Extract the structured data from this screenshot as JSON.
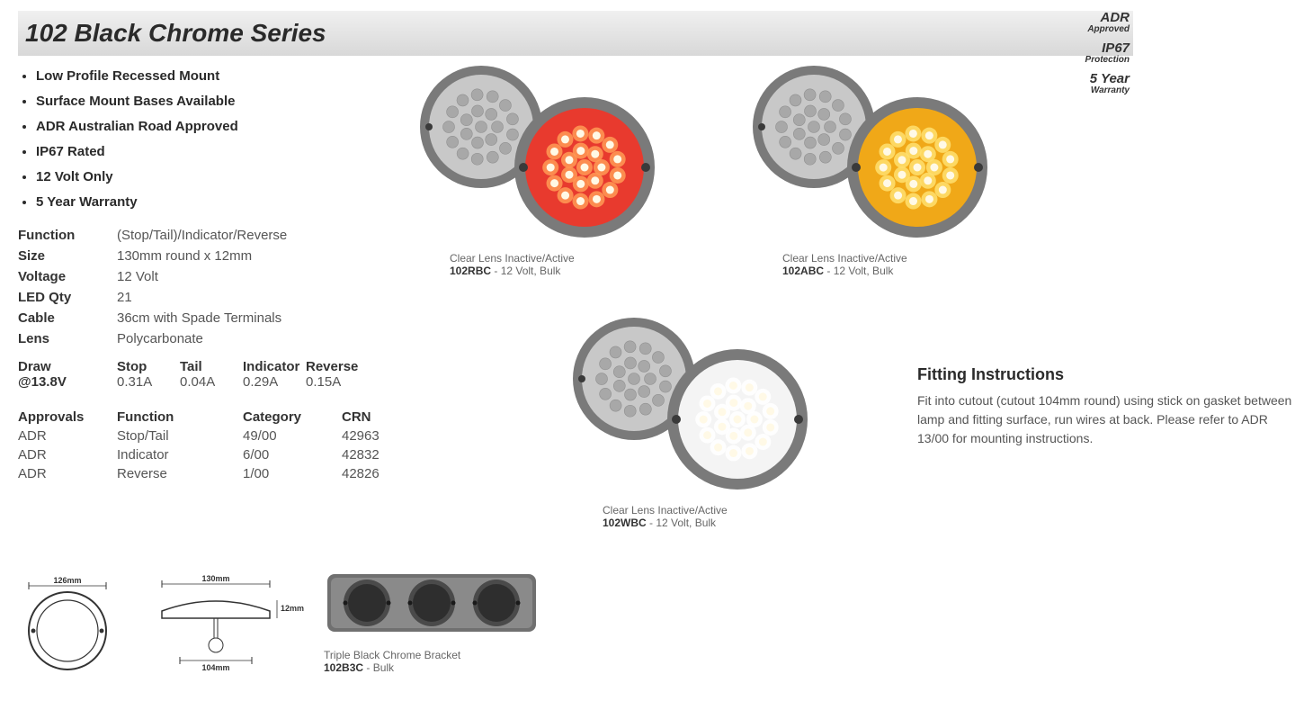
{
  "title": "102 Black Chrome Series",
  "certifications": [
    {
      "big": "ADR",
      "small": "Approved"
    },
    {
      "big": "IP67",
      "small": "Protection"
    },
    {
      "big": "5 Year",
      "small": "Warranty"
    }
  ],
  "bullets": [
    "Low Profile Recessed Mount",
    "Surface Mount Bases Available",
    "ADR Australian Road Approved",
    "IP67 Rated",
    "12 Volt Only",
    "5 Year Warranty"
  ],
  "specs": [
    {
      "label": "Function",
      "value": "(Stop/Tail)/Indicator/Reverse"
    },
    {
      "label": "Size",
      "value": "130mm round x 12mm"
    },
    {
      "label": "Voltage",
      "value": "12 Volt"
    },
    {
      "label": "LED Qty",
      "value": "21"
    },
    {
      "label": "Cable",
      "value": "36cm with Spade Terminals"
    },
    {
      "label": "Lens",
      "value": "Polycarbonate"
    }
  ],
  "draw": {
    "row_label": "Draw",
    "row_at": "@13.8V",
    "cols": [
      "Stop",
      "Tail",
      "Indicator",
      "Reverse"
    ],
    "vals": [
      "0.31A",
      "0.04A",
      "0.29A",
      "0.15A"
    ]
  },
  "approvals": {
    "headers": [
      "Approvals",
      "Function",
      "Category",
      "CRN"
    ],
    "rows": [
      [
        "ADR",
        "Stop/Tail",
        "49/00",
        "42963"
      ],
      [
        "ADR",
        "Indicator",
        "6/00",
        "42832"
      ],
      [
        "ADR",
        "Reverse",
        "1/00",
        "42826"
      ]
    ]
  },
  "lights": [
    {
      "model": "102RBC",
      "desc": " - 12 Volt, Bulk",
      "note": "Clear Lens Inactive/Active",
      "active_color": "#e83a2e",
      "glow": "#ff9b55"
    },
    {
      "model": "102ABC",
      "desc": " - 12 Volt, Bulk",
      "note": "Clear Lens Inactive/Active",
      "active_color": "#f0a818",
      "glow": "#ffe070"
    },
    {
      "model": "102WBC",
      "desc": " - 12 Volt, Bulk",
      "note": "Clear Lens Inactive/Active",
      "active_color": "#f4f4f4",
      "glow": "#ffffff"
    }
  ],
  "bracket": {
    "model": "102B3C",
    "desc": " - Bulk",
    "note": "Triple Black Chrome Bracket"
  },
  "fitting": {
    "heading": "Fitting Instructions",
    "body": "Fit into cutout (cutout 104mm round) using stick on gasket between lamp and fitting surface, run wires at back. Please refer to ADR 13/00 for mounting instructions."
  },
  "diagram": {
    "outer": "126mm",
    "width": "130mm",
    "depth": "12mm",
    "cutout": "104mm"
  },
  "colors": {
    "inactive_bezel": "#7a7a7a",
    "inactive_face": "#c8c8c8",
    "inactive_led": "#a8a8a8",
    "screw": "#3a3a3a"
  }
}
